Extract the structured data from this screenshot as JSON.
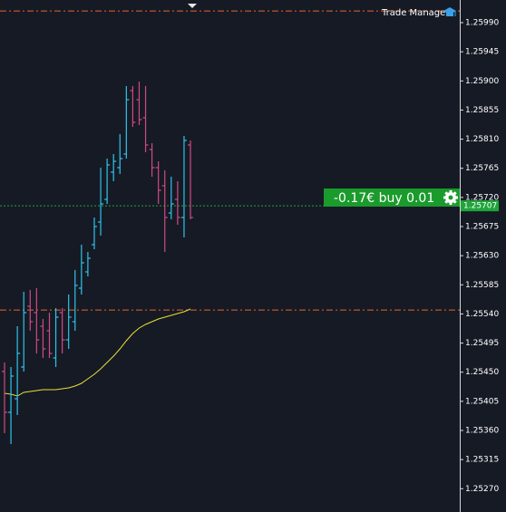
{
  "chart_data": {
    "type": "ohlc",
    "title": "Trade Manager",
    "open": [
      1.25451,
      1.25388,
      1.25409,
      1.25458,
      1.255518,
      1.25542,
      1.25521,
      1.25514,
      1.25472,
      1.25542,
      1.255,
      1.25528,
      1.255798,
      1.25605,
      1.25647,
      1.25682,
      1.25717,
      1.25759,
      1.25766,
      1.25787,
      1.25885,
      1.25871,
      1.25843,
      1.25794,
      1.25766,
      1.25738,
      1.25696,
      1.25717,
      1.25689,
      1.25801
    ],
    "high": [
      1.25465,
      1.25458,
      1.25521,
      1.255742,
      1.25577,
      1.255798,
      1.255322,
      1.25542,
      1.25549,
      1.25549,
      1.2557,
      1.256078,
      1.25647,
      1.256358,
      1.25689,
      1.25766,
      1.2578,
      1.25787,
      1.258178,
      1.25892,
      1.25892,
      1.25899,
      1.25892,
      1.258038,
      1.257758,
      1.257618,
      1.25752,
      1.25745,
      1.25815,
      1.25808
    ],
    "low": [
      1.253558,
      1.25339,
      1.253838,
      1.25451,
      1.25514,
      1.25479,
      1.25472,
      1.25472,
      1.25458,
      1.25479,
      1.25486,
      1.25514,
      1.2557,
      1.25598,
      1.2564,
      1.25661,
      1.2571,
      1.25745,
      1.257562,
      1.2578,
      1.25829,
      1.258318,
      1.257898,
      1.25752,
      1.2571,
      1.256358,
      1.256862,
      1.256778,
      1.256582,
      1.256862
    ],
    "close": [
      1.25388,
      1.25444,
      1.25479,
      1.25542,
      1.25528,
      1.255,
      1.25486,
      1.25479,
      1.25535,
      1.255,
      1.25535,
      1.25584,
      1.25619,
      1.25626,
      1.25675,
      1.2571,
      1.257702,
      1.257758,
      1.2578,
      1.25871,
      1.25836,
      1.258402,
      1.25801,
      1.25766,
      1.25731,
      1.25689,
      1.2571,
      1.25689,
      1.25808,
      1.25689
    ],
    "up_color": "#2ec4ea",
    "down_color": "#cf4a82",
    "moving_average": {
      "color": "#e8e234",
      "values": [
        1.254174,
        1.25416,
        1.254132,
        1.254188,
        1.254202,
        1.254216,
        1.25423,
        1.25423,
        1.25423,
        1.254244,
        1.254258,
        1.254286,
        1.254328,
        1.254398,
        1.254468,
        1.254552,
        1.25465,
        1.254748,
        1.25486,
        1.254986,
        1.255098,
        1.255182,
        1.255238,
        1.25528,
        1.255322,
        1.25535,
        1.255378,
        1.255406,
        1.255434,
        1.255476
      ]
    },
    "levels": [
      1.26008,
      1.25546
    ],
    "level_color": "#e8642c",
    "current_price": 1.25707,
    "current_price_color": "#1fa53a",
    "position_label": "-0.17€ buy 0.01",
    "ylim": [
      1.25234,
      1.26025
    ],
    "yticks": [
      {
        "value": 1.2599,
        "label": "1.25990"
      },
      {
        "value": 1.25945,
        "label": "1.25945"
      },
      {
        "value": 1.259,
        "label": "1.25900"
      },
      {
        "value": 1.25855,
        "label": "1.25855"
      },
      {
        "value": 1.2581,
        "label": "1.25810"
      },
      {
        "value": 1.25765,
        "label": "1.25765"
      },
      {
        "value": 1.2572,
        "label": "1.25720"
      },
      {
        "value": 1.25675,
        "label": "1.25675"
      },
      {
        "value": 1.2563,
        "label": "1.25630"
      },
      {
        "value": 1.25585,
        "label": "1.25585"
      },
      {
        "value": 1.2554,
        "label": "1.25540"
      },
      {
        "value": 1.25495,
        "label": "1.25495"
      },
      {
        "value": 1.2545,
        "label": "1.25450"
      },
      {
        "value": 1.25405,
        "label": "1.25405"
      },
      {
        "value": 1.2536,
        "label": "1.25360"
      },
      {
        "value": 1.25315,
        "label": "1.25315"
      },
      {
        "value": 1.2527,
        "label": "1.25270"
      }
    ]
  }
}
